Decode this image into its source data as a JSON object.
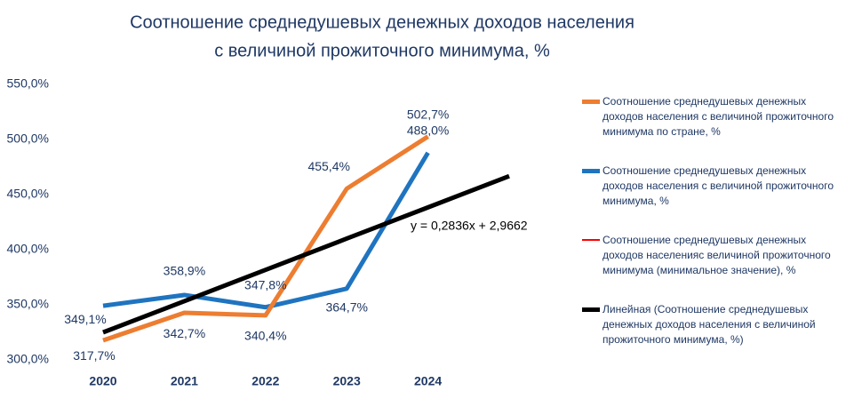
{
  "chart_data": {
    "type": "line",
    "title": "Соотношение среднедушевых денежных доходов населения",
    "subtitle": "с величиной прожиточного минимума, %",
    "categories": [
      "2020",
      "2021",
      "2022",
      "2023",
      "2024",
      null
    ],
    "series": [
      {
        "name": "Соотношение среднедушевых денежных доходов населения с величиной прожиточного минимума по стране, %",
        "color": "#ed7d31",
        "values": [
          317.7,
          342.7,
          340.4,
          455.4,
          502.7,
          null
        ],
        "value_labels": [
          "317,7%",
          "342,7%",
          "340,4%",
          "455,4%",
          "502,7%",
          null
        ]
      },
      {
        "name": "Соотношение среднедушевых денежных доходов населения с величиной прожиточного минимума, %",
        "color": "#1f74c0",
        "values": [
          349.1,
          358.9,
          347.8,
          364.7,
          488.0,
          null
        ],
        "value_labels": [
          "349,1%",
          "358,9%",
          "347,8%",
          "364,7%",
          "488,0%",
          null
        ]
      },
      {
        "name": "Соотношение среднедушевых денежных доходов населенияс величиной прожиточного минимума (минимальное значение), %",
        "color": "#ff0000",
        "values": [
          null,
          null,
          null,
          null,
          null,
          null
        ]
      },
      {
        "name": "Линейная (Соотношение среднедушевых денежных доходов населения с величиной прожиточного минимума, %)",
        "color": "#000000",
        "values": [
          325.0,
          353.3,
          381.7,
          410.1,
          438.4,
          466.8
        ]
      }
    ],
    "annotations": [
      "y = 0,2836x + 2,9662"
    ],
    "ylim": [
      300,
      550
    ],
    "yticks": [
      {
        "value": 300,
        "label": "300,0%"
      },
      {
        "value": 350,
        "label": "350,0%"
      },
      {
        "value": 400,
        "label": "400,0%"
      },
      {
        "value": 450,
        "label": "450,0%"
      },
      {
        "value": 500,
        "label": "500,0%"
      },
      {
        "value": 550,
        "label": "550,0%"
      }
    ],
    "grid": false,
    "legend": "right"
  }
}
